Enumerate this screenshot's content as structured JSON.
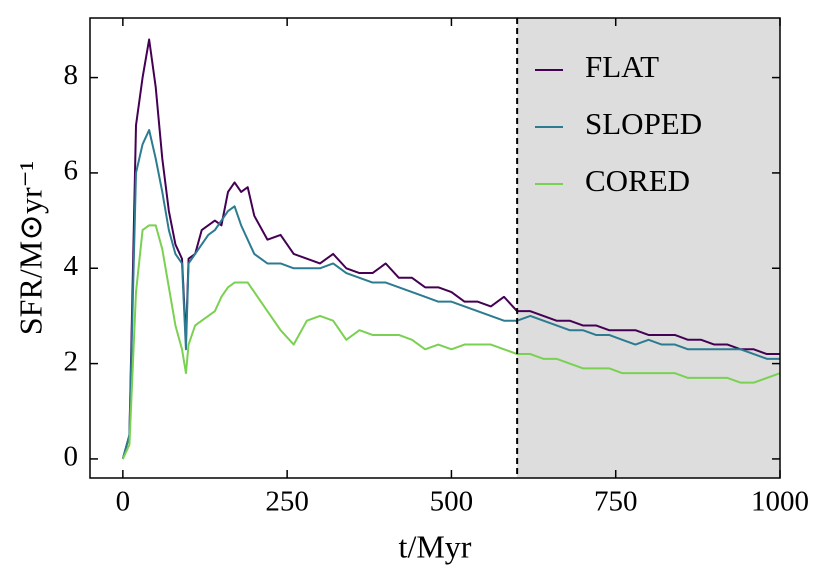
{
  "chart_data": {
    "type": "line",
    "xlabel": "t/Myr",
    "ylabel": "SFR/M⊙yr⁻¹",
    "x": [
      0,
      10,
      20,
      30,
      40,
      50,
      60,
      70,
      80,
      90,
      96,
      100,
      110,
      120,
      130,
      140,
      150,
      160,
      170,
      180,
      190,
      200,
      220,
      240,
      260,
      280,
      300,
      320,
      340,
      360,
      380,
      400,
      420,
      440,
      460,
      480,
      500,
      520,
      540,
      560,
      580,
      600,
      620,
      640,
      660,
      680,
      700,
      720,
      740,
      760,
      780,
      800,
      820,
      840,
      860,
      880,
      900,
      920,
      940,
      960,
      980,
      1000
    ],
    "series": [
      {
        "name": "FLAT",
        "color": "#440154",
        "values": [
          0,
          0.5,
          7.0,
          8.0,
          8.8,
          7.8,
          6.3,
          5.2,
          4.5,
          4.2,
          2.5,
          4.2,
          4.3,
          4.8,
          4.9,
          5.0,
          4.9,
          5.6,
          5.8,
          5.6,
          5.7,
          5.1,
          4.6,
          4.7,
          4.3,
          4.2,
          4.1,
          4.3,
          4.0,
          3.9,
          3.9,
          4.1,
          3.8,
          3.8,
          3.6,
          3.6,
          3.5,
          3.3,
          3.3,
          3.2,
          3.4,
          3.1,
          3.1,
          3.0,
          2.9,
          2.9,
          2.8,
          2.8,
          2.7,
          2.7,
          2.7,
          2.6,
          2.6,
          2.6,
          2.5,
          2.5,
          2.4,
          2.4,
          2.3,
          2.3,
          2.2,
          2.2
        ]
      },
      {
        "name": "SLOPED",
        "color": "#2c7b90",
        "values": [
          0,
          0.5,
          6.0,
          6.6,
          6.9,
          6.3,
          5.6,
          4.8,
          4.3,
          4.1,
          2.3,
          4.1,
          4.3,
          4.5,
          4.7,
          4.8,
          5.0,
          5.2,
          5.3,
          4.9,
          4.6,
          4.3,
          4.1,
          4.1,
          4.0,
          4.0,
          4.0,
          4.1,
          3.9,
          3.8,
          3.7,
          3.7,
          3.6,
          3.5,
          3.4,
          3.3,
          3.3,
          3.2,
          3.1,
          3.0,
          2.9,
          2.9,
          3.0,
          2.9,
          2.8,
          2.7,
          2.7,
          2.6,
          2.6,
          2.5,
          2.4,
          2.5,
          2.4,
          2.4,
          2.3,
          2.3,
          2.3,
          2.3,
          2.3,
          2.2,
          2.1,
          2.1
        ]
      },
      {
        "name": "CORED",
        "color": "#7ad151",
        "values": [
          0,
          0.3,
          3.5,
          4.8,
          4.9,
          4.9,
          4.4,
          3.6,
          2.8,
          2.3,
          1.8,
          2.4,
          2.8,
          2.9,
          3.0,
          3.1,
          3.4,
          3.6,
          3.7,
          3.7,
          3.7,
          3.5,
          3.1,
          2.7,
          2.4,
          2.9,
          3.0,
          2.9,
          2.5,
          2.7,
          2.6,
          2.6,
          2.6,
          2.5,
          2.3,
          2.4,
          2.3,
          2.4,
          2.4,
          2.4,
          2.3,
          2.2,
          2.2,
          2.1,
          2.1,
          2.0,
          1.9,
          1.9,
          1.9,
          1.8,
          1.8,
          1.8,
          1.8,
          1.8,
          1.7,
          1.7,
          1.7,
          1.7,
          1.6,
          1.6,
          1.7,
          1.8
        ]
      }
    ],
    "xlim": [
      -50,
      1000
    ],
    "ylim": [
      -0.4,
      9.25
    ],
    "xticks": [
      0,
      250,
      500,
      750,
      1000
    ],
    "yticks": [
      0,
      2,
      4,
      6,
      8
    ],
    "vline": 600,
    "shade": [
      600,
      1000
    ],
    "shade_color": "#dddddd",
    "legend": "upper right",
    "grid": false
  }
}
